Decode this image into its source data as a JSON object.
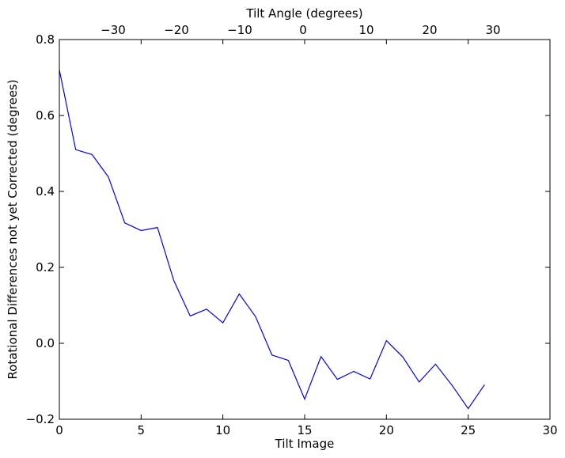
{
  "chart_data": {
    "type": "line",
    "xlabel": "Tilt Image",
    "ylabel": "Rotational Differences not yet Corrected (degrees)",
    "top_xlabel": "Tilt Angle (degrees)",
    "xlim": [
      0,
      30
    ],
    "ylim": [
      -0.2,
      0.8
    ],
    "xticks": [
      0,
      5,
      10,
      15,
      20,
      25,
      30
    ],
    "yticks": [
      -0.2,
      0.0,
      0.2,
      0.4,
      0.6,
      0.8
    ],
    "xtick_labels": [
      "0",
      "5",
      "10",
      "15",
      "20",
      "25",
      "30"
    ],
    "ytick_labels": [
      "−0.2",
      "0.0",
      "0.2",
      "0.4",
      "0.6",
      "0.8"
    ],
    "top_ticks": [
      -30,
      -20,
      -10,
      0,
      10,
      20,
      30
    ],
    "top_tick_labels": [
      "−30",
      "−20",
      "−10",
      "0",
      "10",
      "20",
      "30"
    ],
    "top_xlim": [
      -38.5,
      39
    ],
    "grid": false,
    "series": [
      {
        "color": "#0000ff",
        "x": [
          0,
          1,
          2,
          3,
          4,
          5,
          6,
          7,
          8,
          9,
          10,
          11,
          12,
          13,
          14,
          15,
          16,
          17,
          18,
          19,
          20,
          21,
          22,
          23,
          24,
          25,
          26
        ],
        "y": [
          0.72,
          0.51,
          0.497,
          0.438,
          0.317,
          0.297,
          0.305,
          0.165,
          0.072,
          0.09,
          0.054,
          0.13,
          0.07,
          -0.031,
          -0.045,
          -0.147,
          -0.035,
          -0.095,
          -0.074,
          -0.094,
          0.007,
          -0.036,
          -0.102,
          -0.055,
          -0.11,
          -0.172,
          -0.109
        ]
      }
    ]
  }
}
